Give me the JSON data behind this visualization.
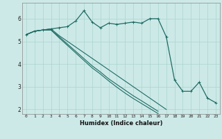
{
  "xlabel": "Humidex (Indice chaleur)",
  "x": [
    0,
    1,
    2,
    3,
    4,
    5,
    6,
    7,
    8,
    9,
    10,
    11,
    12,
    13,
    14,
    15,
    16,
    17,
    18,
    19,
    20,
    21,
    22,
    23
  ],
  "line1": [
    5.3,
    5.45,
    5.5,
    5.55,
    5.6,
    5.65,
    5.9,
    6.35,
    5.85,
    5.6,
    5.8,
    5.75,
    5.8,
    5.85,
    5.8,
    6.0,
    6.0,
    5.2,
    3.3,
    2.8,
    2.8,
    3.2,
    2.5,
    2.3
  ],
  "line2": [
    5.3,
    5.45,
    5.5,
    5.55,
    5.25,
    5.0,
    4.75,
    4.5,
    4.25,
    4.0,
    3.75,
    3.5,
    3.25,
    3.0,
    2.75,
    2.5,
    2.25,
    2.0,
    null,
    null,
    null,
    null,
    null,
    null
  ],
  "line3": [
    5.3,
    5.45,
    5.5,
    5.5,
    5.2,
    4.88,
    4.56,
    4.24,
    3.92,
    3.65,
    3.35,
    3.1,
    2.85,
    2.6,
    2.38,
    2.15,
    1.92,
    null,
    null,
    null,
    null,
    null,
    null,
    null
  ],
  "line4": [
    5.3,
    5.45,
    5.5,
    5.5,
    5.15,
    4.82,
    4.49,
    4.16,
    3.83,
    3.56,
    3.26,
    2.98,
    2.72,
    2.48,
    2.26,
    2.04,
    1.82,
    null,
    null,
    null,
    null,
    null,
    null,
    null
  ],
  "bg_color": "#cce9e7",
  "grid_color": "#aad4d0",
  "line_color": "#1f6b63",
  "ylim": [
    1.8,
    6.7
  ],
  "xlim": [
    -0.5,
    23.5
  ]
}
